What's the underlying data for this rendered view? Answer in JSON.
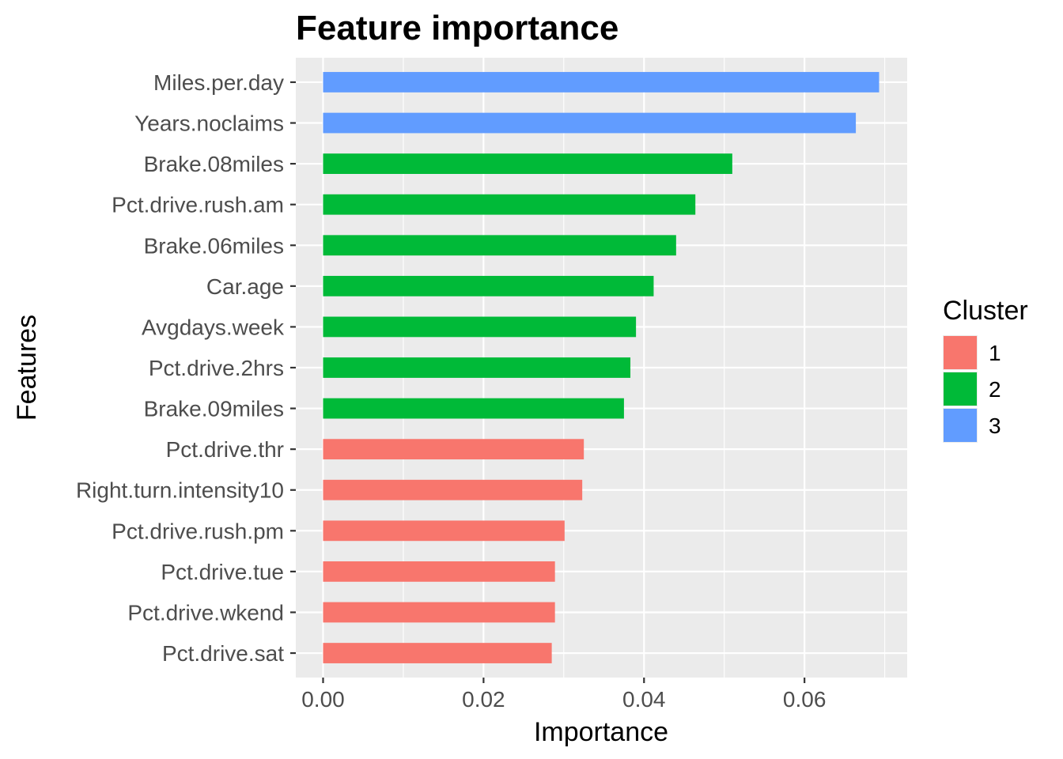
{
  "chart_data": {
    "type": "bar",
    "orientation": "horizontal",
    "title": "Feature importance",
    "xlabel": "Importance",
    "ylabel": "Features",
    "xlim": [
      -0.0034,
      0.0728
    ],
    "x_ticks": [
      0.0,
      0.02,
      0.04,
      0.06
    ],
    "x_tick_labels": [
      "0.00",
      "0.02",
      "0.04",
      "0.06"
    ],
    "grid": true,
    "legend": {
      "title": "Cluster",
      "position": "right",
      "entries": [
        {
          "label": "1",
          "color": "#F8766D"
        },
        {
          "label": "2",
          "color": "#00BA38"
        },
        {
          "label": "3",
          "color": "#619CFF"
        }
      ]
    },
    "categories": [
      "Miles.per.day",
      "Years.noclaims",
      "Brake.08miles",
      "Pct.drive.rush.am",
      "Brake.06miles",
      "Car.age",
      "Avgdays.week",
      "Pct.drive.2hrs",
      "Brake.09miles",
      "Pct.drive.thr",
      "Right.turn.intensity10",
      "Pct.drive.rush.pm",
      "Pct.drive.tue",
      "Pct.drive.wkend",
      "Pct.drive.sat"
    ],
    "values": [
      0.0693,
      0.0664,
      0.051,
      0.0464,
      0.044,
      0.0412,
      0.039,
      0.0383,
      0.0375,
      0.0325,
      0.0323,
      0.0301,
      0.0289,
      0.0289,
      0.0285
    ],
    "cluster": [
      "3",
      "3",
      "2",
      "2",
      "2",
      "2",
      "2",
      "2",
      "2",
      "1",
      "1",
      "1",
      "1",
      "1",
      "1"
    ]
  },
  "colors": {
    "panel_background": "#EBEBEB",
    "grid_major": "#FFFFFF",
    "tick_text": "#4D4D4D"
  }
}
